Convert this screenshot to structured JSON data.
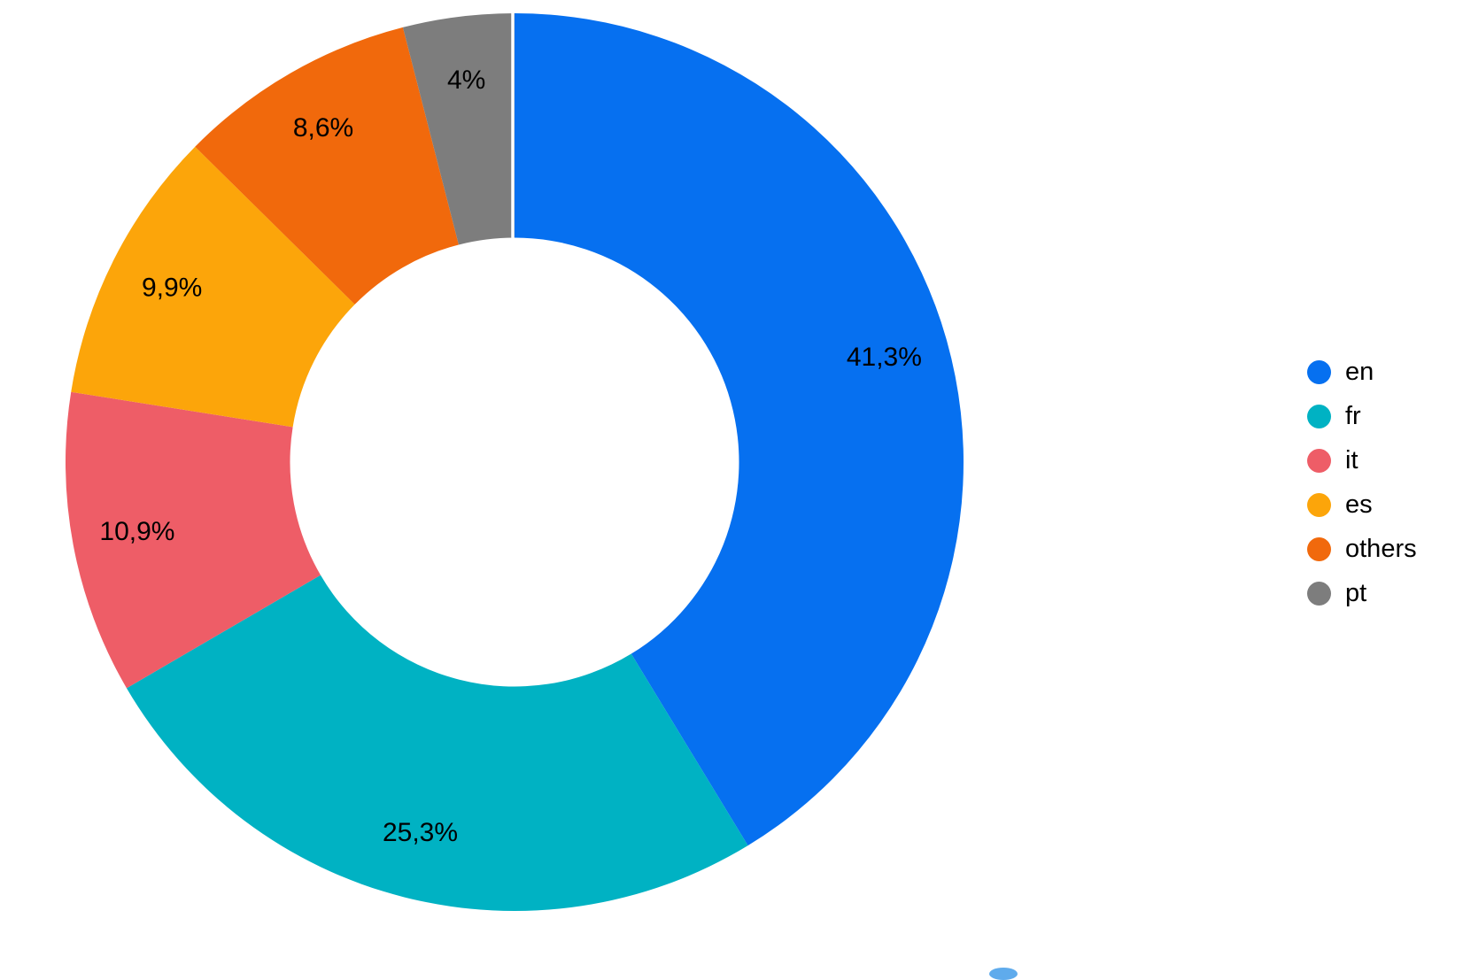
{
  "chart_data": {
    "type": "pie",
    "subtype": "donut",
    "title": "",
    "direction": "clockwise",
    "start_angle_deg": 0,
    "inner_radius_ratio": 0.5,
    "legend_position": "right",
    "decimal_separator": ",",
    "series": [
      {
        "label": "en",
        "value": 41.3,
        "display": "41,3%",
        "color": "#0670f0"
      },
      {
        "label": "fr",
        "value": 25.3,
        "display": "25,3%",
        "color": "#00b2c3"
      },
      {
        "label": "it",
        "value": 10.9,
        "display": "10,9%",
        "color": "#ee5d67"
      },
      {
        "label": "es",
        "value": 9.9,
        "display": "9,9%",
        "color": "#fca50a"
      },
      {
        "label": "others",
        "value": 8.6,
        "display": "8,6%",
        "color": "#f1690c"
      },
      {
        "label": "pt",
        "value": 4,
        "display": "4%",
        "color": "#7d7d7d"
      }
    ]
  }
}
